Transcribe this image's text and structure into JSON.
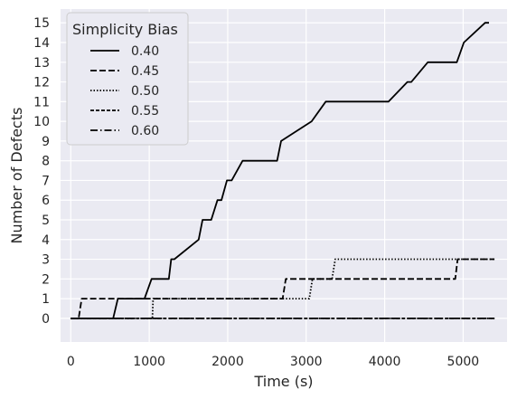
{
  "chart_data": {
    "type": "line",
    "xlabel": "Time (s)",
    "ylabel": "Number of Defects",
    "xlim": [
      -130,
      5560
    ],
    "ylim": [
      -1.2,
      15.7
    ],
    "xticks": [
      0,
      1000,
      2000,
      3000,
      4000,
      5000
    ],
    "yticks": [
      0,
      1,
      2,
      3,
      4,
      5,
      6,
      7,
      8,
      9,
      10,
      11,
      12,
      13,
      14,
      15
    ],
    "grid": true,
    "legend": {
      "title": "Simplicity Bias",
      "placement": "top-left"
    },
    "series": [
      {
        "name": "0.40",
        "dash": "",
        "x": [
          0,
          540,
          600,
          940,
          1030,
          1250,
          1280,
          1320,
          1630,
          1680,
          1790,
          1870,
          1920,
          1990,
          2050,
          2190,
          2300,
          2630,
          2680,
          3070,
          3250,
          4050,
          4290,
          4340,
          4550,
          4920,
          5010,
          5280,
          5330
        ],
        "y": [
          0,
          0,
          1,
          1,
          2,
          2,
          3,
          3,
          4,
          5,
          5,
          6,
          6,
          7,
          7,
          8,
          8,
          8,
          9,
          10,
          11,
          11,
          12,
          12,
          13,
          13,
          14,
          15,
          15
        ]
      },
      {
        "name": "0.45",
        "dash": "7 3",
        "x": [
          0,
          100,
          140,
          2700,
          2740,
          4900,
          4930,
          5400
        ],
        "y": [
          0,
          0,
          1,
          1,
          2,
          2,
          3,
          3
        ]
      },
      {
        "name": "0.50",
        "dash": "1.5 2",
        "x": [
          0,
          1040,
          1050,
          3040,
          3080,
          3330,
          3370,
          5400
        ],
        "y": [
          0,
          0,
          1,
          1,
          2,
          2,
          3,
          3
        ]
      },
      {
        "name": "0.55",
        "dash": "4 2",
        "x": [
          0,
          5400
        ],
        "y": [
          0,
          0
        ]
      },
      {
        "name": "0.60",
        "dash": "8 3 1.5 3",
        "x": [
          0,
          5400
        ],
        "y": [
          0,
          0
        ]
      }
    ]
  }
}
